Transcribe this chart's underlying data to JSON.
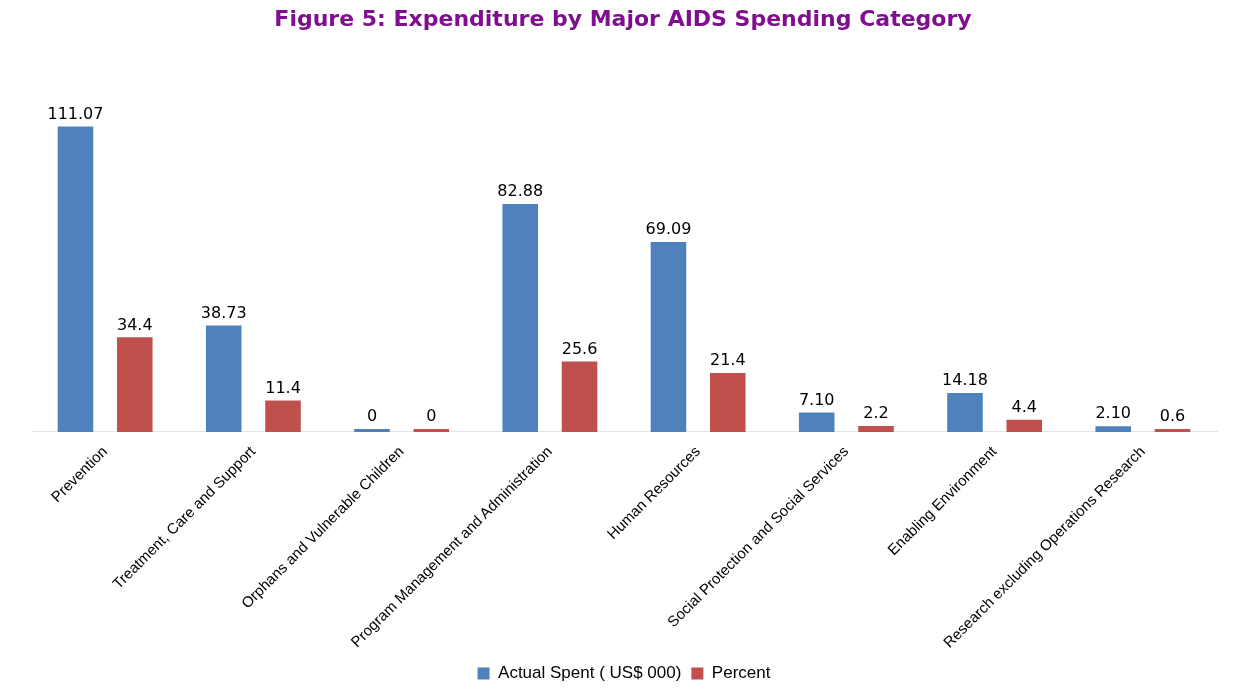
{
  "chart_data": {
    "type": "bar",
    "title": "Figure 5: Expenditure by Major AIDS Spending Category",
    "categories": [
      "Prevention",
      "Treatment, Care and Support",
      "Orphans and Vulnerable Children",
      "Program Management and Administration",
      "Human Resources",
      "Social Protection and Social Services",
      "Enabling Environment",
      "Research excluding Operations Research"
    ],
    "series": [
      {
        "name": "Actual Spent ( US$ 000)",
        "color": "#4f81bd",
        "values": [
          111.07,
          38.73,
          0,
          82.88,
          69.09,
          7.1,
          14.18,
          2.1
        ],
        "value_labels": [
          "111.07",
          "38.73",
          "0",
          "82.88",
          "69.09",
          "7.10",
          "14.18",
          "2.10"
        ]
      },
      {
        "name": "Percent",
        "color": "#c0504d",
        "values": [
          34.4,
          11.4,
          0,
          25.6,
          21.4,
          2.2,
          4.4,
          0.6
        ],
        "value_labels": [
          "34.4",
          "11.4",
          "0",
          "25.6",
          "21.4",
          "2.2",
          "4.4",
          "0.6"
        ]
      }
    ],
    "tick_labels": "x",
    "legend": "bottom",
    "grid": false
  }
}
